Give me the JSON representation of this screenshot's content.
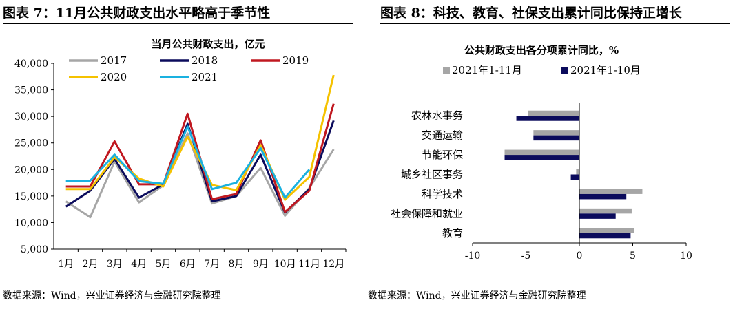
{
  "left": {
    "panel_title": "图表 7：11月公共财政支出水平略高于季节性",
    "source": "数据来源：Wind，兴业证券经济与金融研究院整理"
  },
  "right": {
    "panel_title": "图表 8：科技、教育、社保支出累计同比保持正增长",
    "source": "数据来源：Wind，兴业证券经济与金融研究院整理"
  },
  "chart_data": [
    {
      "type": "line",
      "title": "当月公共财政支出，亿元",
      "categories": [
        "1月",
        "2月",
        "3月",
        "4月",
        "5月",
        "6月",
        "7月",
        "8月",
        "9月",
        "10月",
        "11月",
        "12月"
      ],
      "ylim": [
        5000,
        40000
      ],
      "yticks": [
        "5,000",
        "10,000",
        "15,000",
        "20,000",
        "25,000",
        "30,000",
        "35,000",
        "40,000"
      ],
      "grid": false,
      "legend_position": "top-left",
      "series": [
        {
          "name": "2017",
          "color": "#a6a6a6",
          "values": [
            14000,
            11000,
            21500,
            13800,
            17000,
            26800,
            13600,
            15000,
            20300,
            11300,
            16500,
            23800
          ]
        },
        {
          "name": "2018",
          "color": "#0b0b5c",
          "values": [
            13000,
            16000,
            22000,
            14700,
            17200,
            28600,
            14000,
            15000,
            22800,
            11900,
            16300,
            29200
          ]
        },
        {
          "name": "2019",
          "color": "#c01820",
          "values": [
            16800,
            16800,
            25300,
            17200,
            17200,
            30500,
            14400,
            15400,
            25500,
            12000,
            16000,
            32400
          ]
        },
        {
          "name": "2020",
          "color": "#f5c200",
          "values": [
            16300,
            16300,
            22300,
            18300,
            16800,
            26200,
            17100,
            16100,
            24600,
            14300,
            18600,
            37800
          ]
        },
        {
          "name": "2021",
          "color": "#1ab1e0",
          "values": [
            17900,
            17900,
            22800,
            17800,
            17300,
            28100,
            16300,
            17500,
            24000,
            14700,
            20000,
            null
          ]
        }
      ]
    },
    {
      "type": "bar",
      "orientation": "horizontal",
      "title": "公共财政支出各分项累计同比，%",
      "categories": [
        "农林水事务",
        "交通运输",
        "节能环保",
        "城乡社区事务",
        "科学技术",
        "社会保障和就业",
        "教育"
      ],
      "xlim": [
        -10,
        10
      ],
      "xticks": [
        "-10",
        "-5",
        "0",
        "5",
        "10"
      ],
      "legend_position": "top",
      "series": [
        {
          "name": "2021年1-11月",
          "color": "#a6a6a6",
          "values": [
            -4.8,
            -4.3,
            -7.0,
            -0.3,
            5.9,
            4.9,
            5.1
          ]
        },
        {
          "name": "2021年1-10月",
          "color": "#0b0b5c",
          "values": [
            -5.9,
            -4.3,
            -7.0,
            -0.8,
            4.4,
            3.4,
            4.8
          ]
        }
      ]
    }
  ]
}
